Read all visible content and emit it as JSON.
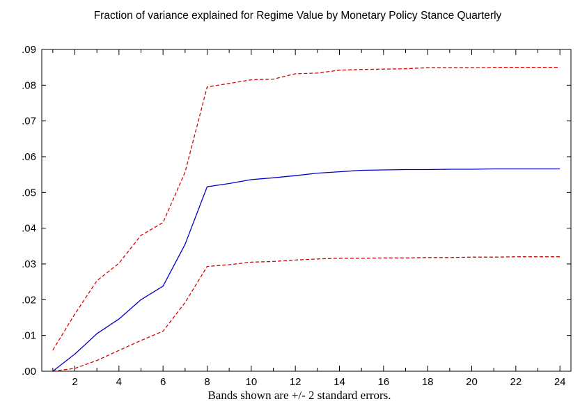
{
  "chart_data": {
    "type": "line",
    "title": "Fraction of variance explained for Regime Value by Monetary Policy Stance Quarterly",
    "note": "Bands shown are +/- 2 standard errors.",
    "xlabel": "",
    "ylabel": "",
    "xlim": [
      0.5,
      24.5
    ],
    "ylim": [
      0,
      0.09
    ],
    "x": [
      1,
      2,
      3,
      4,
      5,
      6,
      7,
      8,
      9,
      10,
      11,
      12,
      13,
      14,
      15,
      16,
      17,
      18,
      19,
      20,
      21,
      22,
      23,
      24
    ],
    "x_tick_values": [
      2,
      4,
      6,
      8,
      10,
      12,
      14,
      16,
      18,
      20,
      22,
      24
    ],
    "x_tick_labels": [
      "2",
      "4",
      "6",
      "8",
      "10",
      "12",
      "14",
      "16",
      "18",
      "20",
      "22",
      "24"
    ],
    "y_tick_values": [
      0,
      0.01,
      0.02,
      0.03,
      0.04,
      0.05,
      0.06,
      0.07,
      0.08,
      0.09
    ],
    "y_tick_labels": [
      ".00",
      ".01",
      ".02",
      ".03",
      ".04",
      ".05",
      ".06",
      ".07",
      ".08",
      ".09"
    ],
    "grid": false,
    "legend": "none",
    "series": [
      {
        "role": "estimate",
        "color": "#0000cc",
        "style": "solid",
        "values": [
          0.0,
          0.0048,
          0.0105,
          0.0146,
          0.02,
          0.0238,
          0.0355,
          0.0516,
          0.0525,
          0.0536,
          0.0541,
          0.0547,
          0.0554,
          0.0558,
          0.0562,
          0.0563,
          0.0564,
          0.0564,
          0.0565,
          0.0565,
          0.0566,
          0.0566,
          0.0566,
          0.0566
        ]
      },
      {
        "role": "upper band",
        "color": "#dd0000",
        "style": "dashed",
        "values": [
          0.0059,
          0.016,
          0.0253,
          0.0302,
          0.038,
          0.0416,
          0.0557,
          0.0795,
          0.0805,
          0.0815,
          0.0817,
          0.0832,
          0.0834,
          0.0842,
          0.0844,
          0.0845,
          0.0846,
          0.0849,
          0.0849,
          0.0849,
          0.085,
          0.085,
          0.085,
          0.085
        ]
      },
      {
        "role": "lower band",
        "color": "#dd0000",
        "style": "dashed",
        "values": [
          0.0,
          0.0008,
          0.003,
          0.0058,
          0.0086,
          0.0112,
          0.0192,
          0.0293,
          0.0298,
          0.0305,
          0.0307,
          0.0311,
          0.0314,
          0.0316,
          0.0316,
          0.0317,
          0.0317,
          0.0318,
          0.0318,
          0.0319,
          0.0319,
          0.032,
          0.032,
          0.032
        ]
      }
    ]
  }
}
